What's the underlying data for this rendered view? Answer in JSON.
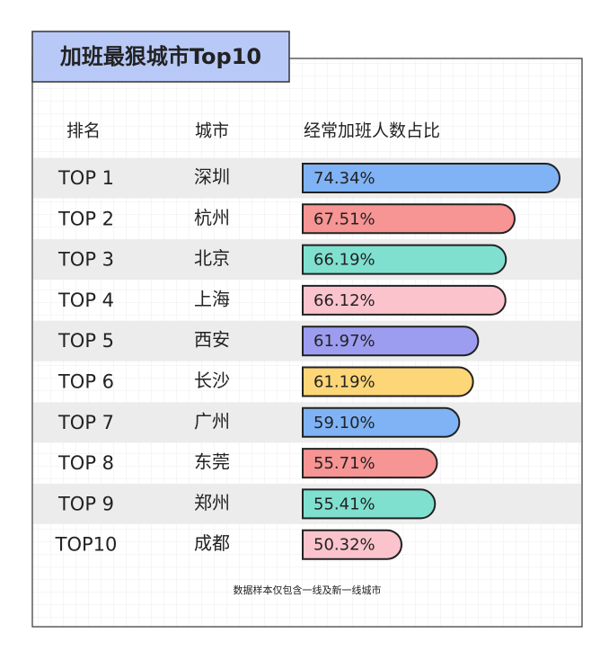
{
  "chart_data": {
    "type": "bar",
    "title": "加班最狠城市Top10",
    "column_headers": [
      "排名",
      "城市",
      "经常加班人数占比"
    ],
    "ranks": [
      "TOP 1",
      "TOP 2",
      "TOP 3",
      "TOP 4",
      "TOP 5",
      "TOP 6",
      "TOP 7",
      "TOP 8",
      "TOP 9",
      "TOP10"
    ],
    "categories": [
      "深圳",
      "杭州",
      "北京",
      "上海",
      "西安",
      "长沙",
      "广州",
      "东莞",
      "郑州",
      "成都"
    ],
    "values": [
      74.34,
      67.51,
      66.19,
      66.12,
      61.97,
      61.19,
      59.1,
      55.71,
      55.41,
      50.32
    ],
    "value_labels": [
      "74.34%",
      "67.51%",
      "66.19%",
      "66.12%",
      "61.97%",
      "61.19%",
      "59.10%",
      "55.71%",
      "55.41%",
      "50.32%"
    ],
    "colors": [
      "#7fb3f5",
      "#f79494",
      "#80e0d0",
      "#fbc4cd",
      "#9c9df0",
      "#fdd677",
      "#7fb3f5",
      "#f79494",
      "#80e0d0",
      "#fbc4cd"
    ],
    "note": "数据样本仅包含一线及新一线城市"
  }
}
